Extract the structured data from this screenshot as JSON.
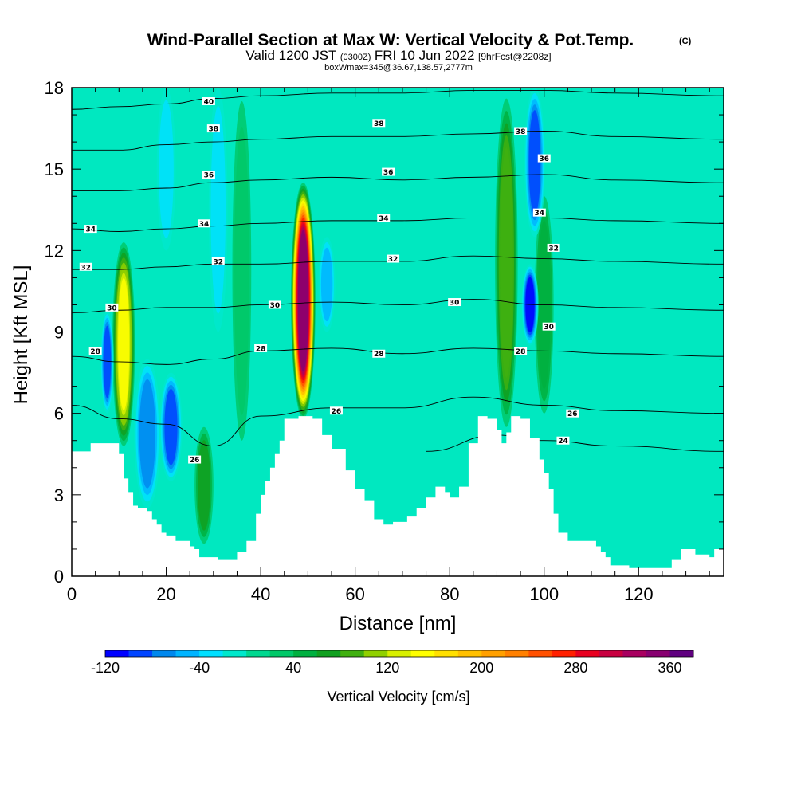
{
  "chart_data": {
    "type": "heatmap",
    "title": "Wind-Parallel Section at Max W: Vertical Velocity & Pot.Temp.",
    "title_mark": "(C)",
    "subtitle": {
      "valid_prefix": "Valid 1200 JST",
      "utc": "(0300Z)",
      "date": "FRI 10 Jun 2022",
      "forecast": "[9hrFcst@2208z]"
    },
    "box_info": "boxWmax=345@36.67,138.57,2777m",
    "xlabel": "Distance [nm]",
    "ylabel": "Height [Kft MSL]",
    "xlim": [
      0,
      138
    ],
    "ylim": [
      0,
      18
    ],
    "x_ticks": [
      0,
      20,
      40,
      60,
      80,
      100,
      120
    ],
    "y_ticks": [
      0,
      3,
      6,
      9,
      12,
      15,
      18
    ],
    "terrain": [
      [
        0,
        4.6
      ],
      [
        3,
        4.6
      ],
      [
        4,
        4.9
      ],
      [
        8,
        4.9
      ],
      [
        10,
        4.5
      ],
      [
        11,
        3.6
      ],
      [
        12,
        3.1
      ],
      [
        13,
        2.6
      ],
      [
        14,
        2.5
      ],
      [
        16,
        2.4
      ],
      [
        17,
        2.1
      ],
      [
        18,
        1.9
      ],
      [
        19,
        1.6
      ],
      [
        20,
        1.5
      ],
      [
        22,
        1.3
      ],
      [
        24,
        1.3
      ],
      [
        25,
        1.1
      ],
      [
        26,
        1.0
      ],
      [
        27,
        0.7
      ],
      [
        30,
        0.7
      ],
      [
        31,
        0.6
      ],
      [
        34,
        0.6
      ],
      [
        35,
        0.9
      ],
      [
        37,
        1.3
      ],
      [
        39,
        2.3
      ],
      [
        40,
        3.0
      ],
      [
        41,
        3.5
      ],
      [
        42,
        4.0
      ],
      [
        43,
        4.5
      ],
      [
        44,
        5.0
      ],
      [
        45,
        5.8
      ],
      [
        48,
        5.9
      ],
      [
        51,
        5.8
      ],
      [
        53,
        5.2
      ],
      [
        55,
        4.7
      ],
      [
        58,
        3.9
      ],
      [
        60,
        3.2
      ],
      [
        62,
        2.8
      ],
      [
        64,
        2.1
      ],
      [
        66,
        1.9
      ],
      [
        68,
        2.0
      ],
      [
        71,
        2.2
      ],
      [
        73,
        2.5
      ],
      [
        75,
        2.9
      ],
      [
        77,
        3.3
      ],
      [
        79,
        3.1
      ],
      [
        80,
        2.9
      ],
      [
        82,
        3.3
      ],
      [
        84,
        4.9
      ],
      [
        86,
        5.9
      ],
      [
        88,
        5.8
      ],
      [
        90,
        5.4
      ],
      [
        91,
        4.9
      ],
      [
        92,
        5.3
      ],
      [
        93,
        5.9
      ],
      [
        95,
        5.8
      ],
      [
        97,
        5.1
      ],
      [
        99,
        4.3
      ],
      [
        100,
        3.8
      ],
      [
        101,
        3.2
      ],
      [
        102,
        2.3
      ],
      [
        103,
        1.6
      ],
      [
        105,
        1.3
      ],
      [
        110,
        1.3
      ],
      [
        111,
        1.1
      ],
      [
        112,
        0.9
      ],
      [
        113,
        0.7
      ],
      [
        114,
        0.4
      ],
      [
        118,
        0.3
      ],
      [
        126,
        0.3
      ],
      [
        127,
        0.6
      ],
      [
        129,
        1.0
      ],
      [
        131,
        1.0
      ],
      [
        132,
        0.8
      ],
      [
        135,
        0.7
      ],
      [
        136,
        1.0
      ],
      [
        138,
        1.0
      ]
    ],
    "w_cells": [
      {
        "x": 49,
        "z1": 5.8,
        "z2": 14.5,
        "w": 345,
        "width": 2.6
      },
      {
        "x": 11,
        "z1": 4.8,
        "z2": 12.3,
        "w": 150,
        "width": 2.4
      },
      {
        "x": 92,
        "z1": 5.5,
        "z2": 17.6,
        "w": 95,
        "width": 2.4
      },
      {
        "x": 28,
        "z1": 1.2,
        "z2": 5.5,
        "w": 60,
        "width": 2.0
      },
      {
        "x": 100,
        "z1": 6.0,
        "z2": 14.0,
        "w": 50,
        "width": 2.0
      },
      {
        "x": 36,
        "z1": 5.0,
        "z2": 17.5,
        "w": 30,
        "width": 2.0
      },
      {
        "x": 7.5,
        "z1": 6.0,
        "z2": 9.8,
        "w": -100,
        "width": 1.4
      },
      {
        "x": 16,
        "z1": 2.5,
        "z2": 8.0,
        "w": -80,
        "width": 2.8
      },
      {
        "x": 21,
        "z1": 3.5,
        "z2": 7.5,
        "w": -90,
        "width": 2.4
      },
      {
        "x": 97,
        "z1": 8.5,
        "z2": 11.5,
        "w": -110,
        "width": 1.8
      },
      {
        "x": 98,
        "z1": 12.5,
        "z2": 18.0,
        "w": -90,
        "width": 2.2
      },
      {
        "x": 54,
        "z1": 9.0,
        "z2": 12.5,
        "w": -60,
        "width": 1.8
      },
      {
        "x": 31,
        "z1": 9.0,
        "z2": 18.0,
        "w": -40,
        "width": 2.0
      },
      {
        "x": 20,
        "z1": 12.0,
        "z2": 18.0,
        "w": -40,
        "width": 2.0
      }
    ],
    "theta_levels": [
      {
        "label": "24",
        "points": [
          [
            75,
            4.6
          ],
          [
            90,
            5.2
          ],
          [
            100,
            5.0
          ],
          [
            115,
            4.8
          ],
          [
            138,
            4.6
          ]
        ]
      },
      {
        "label": "26",
        "points": [
          [
            0,
            6.3
          ],
          [
            10,
            5.8
          ],
          [
            20,
            5.6
          ],
          [
            30,
            4.8
          ],
          [
            40,
            5.9
          ],
          [
            55,
            6.2
          ],
          [
            70,
            6.2
          ],
          [
            85,
            6.6
          ],
          [
            100,
            6.3
          ],
          [
            115,
            6.1
          ],
          [
            138,
            6.0
          ]
        ]
      },
      {
        "label": "28",
        "points": [
          [
            0,
            8.1
          ],
          [
            10,
            7.9
          ],
          [
            20,
            7.8
          ],
          [
            30,
            8.0
          ],
          [
            40,
            8.3
          ],
          [
            55,
            8.4
          ],
          [
            70,
            8.2
          ],
          [
            85,
            8.4
          ],
          [
            100,
            8.3
          ],
          [
            115,
            8.2
          ],
          [
            138,
            8.1
          ]
        ]
      },
      {
        "label": "30",
        "points": [
          [
            0,
            9.7
          ],
          [
            10,
            9.8
          ],
          [
            20,
            9.9
          ],
          [
            30,
            9.9
          ],
          [
            40,
            10.0
          ],
          [
            55,
            10.1
          ],
          [
            70,
            10.0
          ],
          [
            85,
            10.2
          ],
          [
            100,
            10.0
          ],
          [
            115,
            9.9
          ],
          [
            138,
            9.8
          ]
        ]
      },
      {
        "label": "32",
        "points": [
          [
            0,
            11.3
          ],
          [
            10,
            11.3
          ],
          [
            20,
            11.4
          ],
          [
            30,
            11.5
          ],
          [
            40,
            11.5
          ],
          [
            55,
            11.6
          ],
          [
            70,
            11.6
          ],
          [
            85,
            11.8
          ],
          [
            100,
            11.7
          ],
          [
            115,
            11.6
          ],
          [
            138,
            11.5
          ]
        ]
      },
      {
        "label": "34",
        "points": [
          [
            0,
            12.8
          ],
          [
            10,
            12.7
          ],
          [
            20,
            12.8
          ],
          [
            30,
            12.9
          ],
          [
            40,
            13.0
          ],
          [
            55,
            13.1
          ],
          [
            70,
            13.1
          ],
          [
            85,
            13.2
          ],
          [
            100,
            13.2
          ],
          [
            115,
            13.1
          ],
          [
            138,
            13.0
          ]
        ]
      },
      {
        "label": "36",
        "points": [
          [
            0,
            14.2
          ],
          [
            10,
            14.2
          ],
          [
            20,
            14.3
          ],
          [
            30,
            14.5
          ],
          [
            40,
            14.6
          ],
          [
            55,
            14.7
          ],
          [
            70,
            14.6
          ],
          [
            85,
            14.7
          ],
          [
            100,
            14.8
          ],
          [
            115,
            14.6
          ],
          [
            138,
            14.5
          ]
        ]
      },
      {
        "label": "38",
        "points": [
          [
            0,
            15.7
          ],
          [
            10,
            15.7
          ],
          [
            20,
            15.9
          ],
          [
            30,
            16.0
          ],
          [
            40,
            16.1
          ],
          [
            55,
            16.2
          ],
          [
            70,
            16.2
          ],
          [
            85,
            16.3
          ],
          [
            100,
            16.4
          ],
          [
            115,
            16.2
          ],
          [
            138,
            16.1
          ]
        ]
      },
      {
        "label": "40",
        "points": [
          [
            0,
            17.2
          ],
          [
            10,
            17.3
          ],
          [
            20,
            17.4
          ],
          [
            30,
            17.6
          ],
          [
            40,
            17.7
          ],
          [
            55,
            17.8
          ],
          [
            70,
            17.8
          ],
          [
            85,
            17.9
          ],
          [
            100,
            17.9
          ],
          [
            115,
            17.8
          ],
          [
            138,
            17.7
          ]
        ]
      }
    ],
    "theta_label_positions": [
      {
        "label": "40",
        "x": 29,
        "z": 17.5
      },
      {
        "label": "38",
        "x": 30,
        "z": 16.5
      },
      {
        "label": "38",
        "x": 65,
        "z": 16.7
      },
      {
        "label": "38",
        "x": 95,
        "z": 16.4
      },
      {
        "label": "36",
        "x": 29,
        "z": 14.8
      },
      {
        "label": "36",
        "x": 67,
        "z": 14.9
      },
      {
        "label": "36",
        "x": 100,
        "z": 15.4
      },
      {
        "label": "34",
        "x": 4,
        "z": 12.8
      },
      {
        "label": "34",
        "x": 28,
        "z": 13.0
      },
      {
        "label": "34",
        "x": 66,
        "z": 13.2
      },
      {
        "label": "34",
        "x": 99,
        "z": 13.4
      },
      {
        "label": "32",
        "x": 3,
        "z": 11.4
      },
      {
        "label": "32",
        "x": 31,
        "z": 11.6
      },
      {
        "label": "32",
        "x": 68,
        "z": 11.7
      },
      {
        "label": "32",
        "x": 102,
        "z": 12.1
      },
      {
        "label": "30",
        "x": 8.5,
        "z": 9.9
      },
      {
        "label": "30",
        "x": 43,
        "z": 10.0
      },
      {
        "label": "30",
        "x": 81,
        "z": 10.1
      },
      {
        "label": "30",
        "x": 101,
        "z": 9.2
      },
      {
        "label": "28",
        "x": 5,
        "z": 8.3
      },
      {
        "label": "28",
        "x": 40,
        "z": 8.4
      },
      {
        "label": "28",
        "x": 65,
        "z": 8.2
      },
      {
        "label": "28",
        "x": 95,
        "z": 8.3
      },
      {
        "label": "26",
        "x": 26,
        "z": 4.3
      },
      {
        "label": "26",
        "x": 56,
        "z": 6.1
      },
      {
        "label": "26",
        "x": 106,
        "z": 6.0
      },
      {
        "label": "24",
        "x": 104,
        "z": 5.0
      }
    ],
    "colorbar": {
      "label": "Vertical Velocity [cm/s]",
      "min": -120,
      "max": 380,
      "step": 20,
      "tick_values": [
        -120,
        -40,
        40,
        120,
        200,
        280,
        360
      ],
      "tick_labels": [
        "-120",
        "-40",
        "40",
        "120",
        "200",
        "280",
        "360"
      ],
      "colors": [
        "#0000ff",
        "#0044ff",
        "#0088ee",
        "#00b4ff",
        "#00e0ff",
        "#00e8cc",
        "#00d890",
        "#00c868",
        "#00b040",
        "#10a020",
        "#40b010",
        "#90d000",
        "#d8f000",
        "#ffff00",
        "#ffe000",
        "#ffc000",
        "#ffa000",
        "#ff8000",
        "#ff5000",
        "#ff2000",
        "#e80020",
        "#c80040",
        "#a80060",
        "#880070",
        "#600080"
      ]
    }
  }
}
